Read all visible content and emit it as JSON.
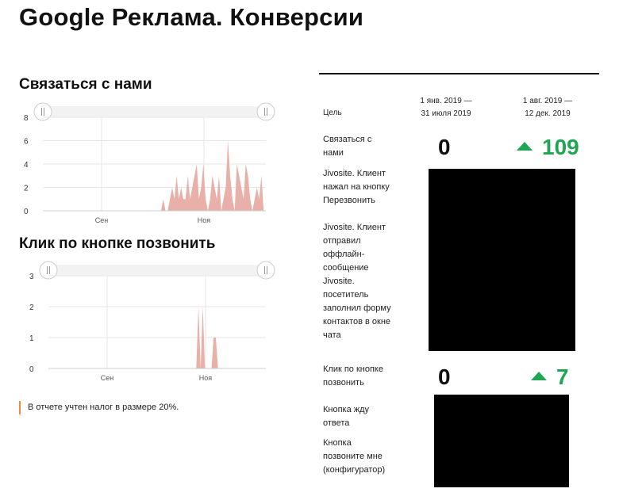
{
  "page": {
    "title": "Google Реклама. Конверсии"
  },
  "charts": [
    {
      "title": "Связаться с нами",
      "ylim": [
        0,
        8
      ],
      "yticks": [
        "0",
        "2",
        "4",
        "6",
        "8"
      ],
      "xticks": [
        "Сен",
        "Ноя"
      ],
      "color": "#e8b0a8"
    },
    {
      "title": "Клик по кнопке позвонить",
      "ylim": [
        0,
        3
      ],
      "yticks": [
        "0",
        "1",
        "2",
        "3"
      ],
      "xticks": [
        "Сен",
        "Ноя"
      ],
      "color": "#e8b0a8"
    }
  ],
  "chart_data": [
    {
      "type": "area",
      "title": "Связаться с нами",
      "ylim": [
        0,
        8
      ],
      "xticks": [
        "Сен",
        "Ноя"
      ],
      "values": [
        0,
        0,
        0,
        0,
        0,
        0,
        0,
        0,
        0,
        0,
        0,
        0,
        0,
        0,
        0,
        0,
        0,
        0,
        0,
        0,
        0,
        0,
        0,
        0,
        0,
        0,
        0,
        0,
        0,
        0,
        0,
        0,
        0,
        0,
        0,
        0,
        0,
        0,
        0,
        0,
        0,
        0,
        0,
        0,
        0,
        0,
        0,
        0,
        0,
        0,
        0,
        0,
        0,
        0,
        1,
        0,
        0,
        1,
        2,
        1,
        3,
        1,
        2,
        1,
        1,
        3,
        1,
        2,
        3,
        4,
        1,
        2,
        4,
        1,
        0,
        1,
        3,
        2,
        1,
        3,
        0,
        1,
        2,
        6,
        3,
        1,
        0,
        4,
        3,
        2,
        1,
        4,
        3,
        1,
        0,
        1,
        2,
        1,
        3,
        0,
        0
      ]
    },
    {
      "type": "area",
      "title": "Клик по кнопке позвонить",
      "ylim": [
        0,
        3
      ],
      "xticks": [
        "Сен",
        "Ноя"
      ],
      "values": [
        0,
        0,
        0,
        0,
        0,
        0,
        0,
        0,
        0,
        0,
        0,
        0,
        0,
        0,
        0,
        0,
        0,
        0,
        0,
        0,
        0,
        0,
        0,
        0,
        0,
        0,
        0,
        0,
        0,
        0,
        0,
        0,
        0,
        0,
        0,
        0,
        0,
        0,
        0,
        0,
        0,
        0,
        0,
        0,
        0,
        0,
        0,
        0,
        0,
        0,
        0,
        0,
        0,
        0,
        0,
        0,
        0,
        0,
        0,
        0,
        0,
        0,
        0,
        0,
        0,
        0,
        0,
        0,
        0,
        2,
        0,
        2,
        0,
        0,
        0,
        0,
        1,
        1,
        0,
        0,
        0,
        0,
        0,
        0,
        0,
        0,
        0,
        0,
        0,
        0,
        0,
        0,
        0,
        0,
        0,
        0,
        0,
        0,
        0,
        0,
        0
      ]
    }
  ],
  "note": "В отчете учтен налог в размере 20%.",
  "table": {
    "goal_header": "Цель",
    "period1": [
      "1 янв. 2019 —",
      "31 июля 2019"
    ],
    "period2": [
      "1 авг. 2019 —",
      "12 дек. 2019"
    ],
    "rows": [
      {
        "label": "Связаться с нами",
        "v1": "0",
        "v2": "109"
      },
      {
        "label": "Jivosite. Клиент нажал на кнопку Перезвонить"
      },
      {
        "label": "Jivosite. Клиент отправил оффлайн-сообщение"
      },
      {
        "label": "Jivosite. посетитель заполнил форму контактов в окне чата"
      },
      {
        "label": "Клик по кнопке позвонить",
        "v1": "0",
        "v2": "7"
      },
      {
        "label": "Кнопка жду ответа"
      },
      {
        "label": "Кнопка позвоните мне (конфигуратор)"
      }
    ],
    "up_color": "#1fa652"
  }
}
